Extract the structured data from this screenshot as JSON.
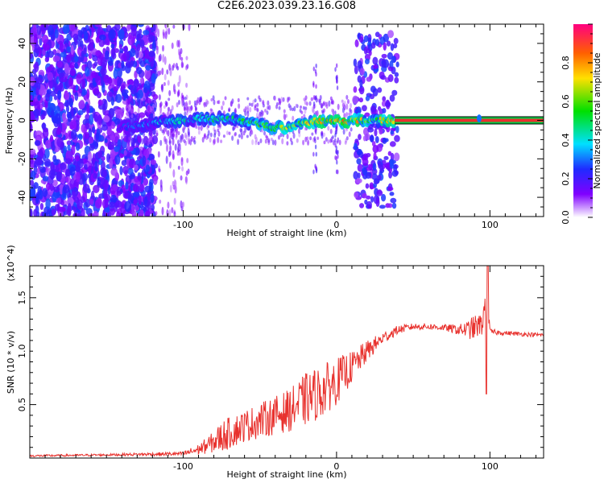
{
  "title": "C2E6.2023.039.23.16.G08",
  "colors": {
    "snr_line": "#e8322e",
    "background": "#ffffff",
    "ridge_center": "#e8322e",
    "ridge_edge": "#00cc44"
  },
  "chart_data": [
    {
      "type": "heatmap",
      "xlabel": "Height of straight line (km)",
      "ylabel": "Frequency (Hz)",
      "xlim": [
        -200,
        135
      ],
      "ylim": [
        -50,
        50
      ],
      "xticks": [
        -100,
        0,
        100
      ],
      "yticks": [
        -40,
        -20,
        0,
        20,
        40
      ],
      "colorbar": {
        "label": "Normalized spectral amplitude",
        "range": [
          0,
          1
        ],
        "ticks": [
          "0.0",
          "0.2",
          "0.4",
          "0.6",
          "0.8"
        ]
      },
      "ridge": [
        {
          "x": -140,
          "y": -4,
          "v": 0.3
        },
        {
          "x": -130,
          "y": -2,
          "v": 0.35
        },
        {
          "x": -120,
          "y": -1,
          "v": 0.4
        },
        {
          "x": -110,
          "y": 0,
          "v": 0.45
        },
        {
          "x": -100,
          "y": 0,
          "v": 0.5
        },
        {
          "x": -90,
          "y": 1,
          "v": 0.5
        },
        {
          "x": -80,
          "y": 1,
          "v": 0.55
        },
        {
          "x": -70,
          "y": 1,
          "v": 0.55
        },
        {
          "x": -60,
          "y": -1,
          "v": 0.6
        },
        {
          "x": -50,
          "y": -2,
          "v": 0.65
        },
        {
          "x": -40,
          "y": -4,
          "v": 0.7
        },
        {
          "x": -30,
          "y": -3,
          "v": 0.75
        },
        {
          "x": -20,
          "y": -1,
          "v": 0.8
        },
        {
          "x": -10,
          "y": 0,
          "v": 0.85
        },
        {
          "x": 0,
          "y": -1,
          "v": 0.9
        },
        {
          "x": 10,
          "y": 0,
          "v": 0.92
        },
        {
          "x": 25,
          "y": 0,
          "v": 0.7
        },
        {
          "x": 38,
          "y": 0,
          "v": 0.99
        },
        {
          "x": 135,
          "y": 0,
          "v": 0.99
        }
      ],
      "constant_band": {
        "x_start": 38,
        "x_end": 135,
        "frequency": 0,
        "value": 0.99
      }
    },
    {
      "type": "line",
      "xlabel": "Height of straight line (km)",
      "ylabel": "SNR (10 * v/v)",
      "y_multiplier": "(x10^4)",
      "xlim": [
        -200,
        135
      ],
      "ylim": [
        0,
        1.8
      ],
      "xticks": [
        -100,
        0,
        100
      ],
      "yticks": [
        0.5,
        1.0,
        1.5
      ],
      "series": [
        {
          "x": [
            -200,
            -150,
            -100,
            -90,
            -80,
            -75,
            -60,
            -40,
            -30,
            -20,
            -10,
            0,
            10,
            20,
            30,
            40,
            50,
            60,
            70,
            80,
            85,
            90,
            95,
            98,
            100,
            110,
            120,
            135
          ],
          "y": [
            0.02,
            0.03,
            0.04,
            0.08,
            0.15,
            0.2,
            0.3,
            0.4,
            0.45,
            0.55,
            0.62,
            0.72,
            0.85,
            1.0,
            1.12,
            1.2,
            1.23,
            1.23,
            1.22,
            1.2,
            1.2,
            1.22,
            1.25,
            1.55,
            1.18,
            1.17,
            1.16,
            1.15
          ],
          "amp": [
            0.01,
            0.01,
            0.02,
            0.05,
            0.1,
            0.15,
            0.15,
            0.18,
            0.2,
            0.25,
            0.25,
            0.22,
            0.15,
            0.1,
            0.06,
            0.04,
            0.03,
            0.03,
            0.03,
            0.05,
            0.08,
            0.12,
            0.1,
            0.2,
            0.03,
            0.02,
            0.02,
            0.02
          ]
        }
      ]
    }
  ]
}
